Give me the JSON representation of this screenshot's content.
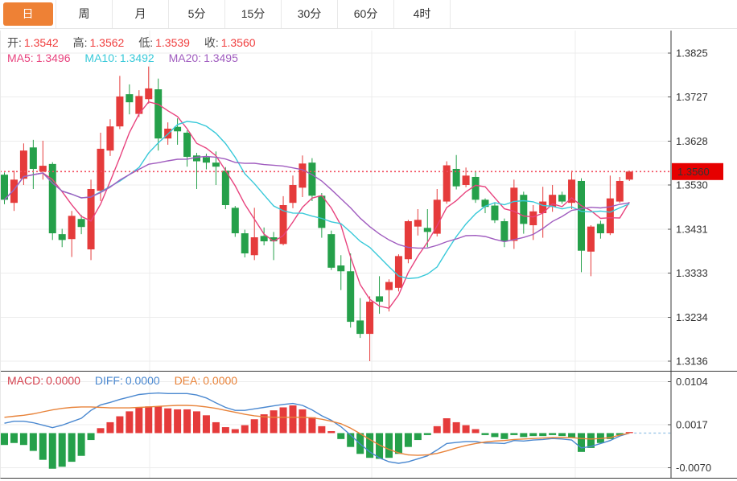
{
  "toolbar": {
    "tabs": [
      {
        "label": "日",
        "active": true
      },
      {
        "label": "周",
        "active": false
      },
      {
        "label": "月",
        "active": false
      },
      {
        "label": "5分",
        "active": false
      },
      {
        "label": "15分",
        "active": false
      },
      {
        "label": "30分",
        "active": false
      },
      {
        "label": "60分",
        "active": false
      },
      {
        "label": "4时",
        "active": false
      }
    ]
  },
  "ohlc_row": {
    "open_label": "开:",
    "open_value": "1.3542",
    "high_label": "高:",
    "high_value": "1.3562",
    "low_label": "低:",
    "low_value": "1.3539",
    "close_label": "收:",
    "close_value": "1.3560"
  },
  "ma_row": {
    "ma5_label": "MA5:",
    "ma5_value": "1.3496",
    "ma10_label": "MA10:",
    "ma10_value": "1.3492",
    "ma20_label": "MA20:",
    "ma20_value": "1.3495"
  },
  "macd_row": {
    "macd_label": "MACD:",
    "macd_value": "0.0000",
    "diff_label": "DIFF:",
    "diff_value": "0.0000",
    "dea_label": "DEA:",
    "dea_value": "0.0000"
  },
  "colors": {
    "up": "#e53b3b",
    "down": "#25a04a",
    "ma5": "#e8437e",
    "ma10": "#38c9d9",
    "ma20": "#a05cbf",
    "diff_line": "#4a88d0",
    "dea_line": "#e8833a",
    "macd_text": "#d4414e",
    "tab_accent": "#ee8135",
    "price_badge": "#e60000",
    "price_line": "#f24d5e",
    "grid": "#ececec",
    "axis": "#3a3a3a",
    "value_red": "#f03e3e"
  },
  "chart_data": {
    "type": "candlestick_with_macd",
    "timeframe": "日",
    "last_price": 1.356,
    "legend": [
      "MA5",
      "MA10",
      "MA20",
      "MACD",
      "DIFF",
      "DEA"
    ],
    "main": {
      "ylim": [
        1.3136,
        1.3825
      ],
      "y_ticks": [
        1.3825,
        1.3727,
        1.3628,
        1.353,
        1.3431,
        1.3333,
        1.3234,
        1.3136
      ],
      "price_line": 1.356,
      "ma_periods": [
        5,
        10,
        20
      ],
      "v_gridline_x": [
        186,
        462,
        715
      ],
      "candles_format": [
        "open",
        "high",
        "low",
        "close"
      ],
      "candles": [
        [
          1.3553,
          1.3558,
          1.3487,
          1.3497
        ],
        [
          1.349,
          1.3562,
          1.3472,
          1.3542
        ],
        [
          1.3544,
          1.3623,
          1.353,
          1.3607
        ],
        [
          1.3614,
          1.3631,
          1.3521,
          1.3566
        ],
        [
          1.356,
          1.3629,
          1.3542,
          1.3573
        ],
        [
          1.3577,
          1.3581,
          1.3407,
          1.3422
        ],
        [
          1.342,
          1.3432,
          1.3391,
          1.3407
        ],
        [
          1.3409,
          1.3472,
          1.3369,
          1.3461
        ],
        [
          1.3454,
          1.3463,
          1.342,
          1.3436
        ],
        [
          1.3386,
          1.3542,
          1.3362,
          1.3521
        ],
        [
          1.3517,
          1.3647,
          1.3494,
          1.3611
        ],
        [
          1.3607,
          1.3677,
          1.3595,
          1.3661
        ],
        [
          1.3661,
          1.3774,
          1.3655,
          1.3728
        ],
        [
          1.3733,
          1.3755,
          1.3688,
          1.3715
        ],
        [
          1.3689,
          1.3742,
          1.3682,
          1.3729
        ],
        [
          1.3722,
          1.3795,
          1.3712,
          1.3746
        ],
        [
          1.3744,
          1.3768,
          1.3607,
          1.3634
        ],
        [
          1.3634,
          1.367,
          1.362,
          1.3656
        ],
        [
          1.366,
          1.3679,
          1.362,
          1.365
        ],
        [
          1.3647,
          1.3652,
          1.3571,
          1.3593
        ],
        [
          1.3596,
          1.3602,
          1.3521,
          1.3583
        ],
        [
          1.3592,
          1.36,
          1.3565,
          1.358
        ],
        [
          1.358,
          1.3605,
          1.353,
          1.3571
        ],
        [
          1.3562,
          1.357,
          1.3476,
          1.3485
        ],
        [
          1.3479,
          1.3483,
          1.3414,
          1.3422
        ],
        [
          1.3422,
          1.343,
          1.3368,
          1.3377
        ],
        [
          1.3373,
          1.3479,
          1.3362,
          1.3413
        ],
        [
          1.3416,
          1.3435,
          1.3395,
          1.3404
        ],
        [
          1.3413,
          1.3425,
          1.3362,
          1.3404
        ],
        [
          1.3398,
          1.3505,
          1.3395,
          1.3485
        ],
        [
          1.349,
          1.3551,
          1.3478,
          1.353
        ],
        [
          1.3524,
          1.3596,
          1.3503,
          1.3578
        ],
        [
          1.358,
          1.359,
          1.3494,
          1.3506
        ],
        [
          1.3506,
          1.3512,
          1.3412,
          1.3434
        ],
        [
          1.342,
          1.3428,
          1.334,
          1.3345
        ],
        [
          1.335,
          1.3373,
          1.3295,
          1.3337
        ],
        [
          1.3337,
          1.3377,
          1.3211,
          1.3224
        ],
        [
          1.3227,
          1.3277,
          1.3188,
          1.3197
        ],
        [
          1.3197,
          1.3281,
          1.3136,
          1.3269
        ],
        [
          1.3281,
          1.3326,
          1.3242,
          1.3269
        ],
        [
          1.3295,
          1.3319,
          1.3247,
          1.3313
        ],
        [
          1.33,
          1.3375,
          1.3292,
          1.3371
        ],
        [
          1.3364,
          1.3452,
          1.3355,
          1.3449
        ],
        [
          1.3437,
          1.3476,
          1.3417,
          1.3452
        ],
        [
          1.3434,
          1.3476,
          1.3391,
          1.3425
        ],
        [
          1.3421,
          1.3521,
          1.3415,
          1.3497
        ],
        [
          1.3493,
          1.3583,
          1.3488,
          1.3574
        ],
        [
          1.3566,
          1.3597,
          1.352,
          1.3527
        ],
        [
          1.353,
          1.3569,
          1.3525,
          1.3551
        ],
        [
          1.3548,
          1.3562,
          1.349,
          1.3497
        ],
        [
          1.3497,
          1.35,
          1.3467,
          1.3481
        ],
        [
          1.3484,
          1.349,
          1.3445,
          1.3451
        ],
        [
          1.3449,
          1.3455,
          1.3391,
          1.3404
        ],
        [
          1.3405,
          1.3542,
          1.3387,
          1.3524
        ],
        [
          1.3508,
          1.3515,
          1.3421,
          1.3443
        ],
        [
          1.344,
          1.3485,
          1.3407,
          1.3471
        ],
        [
          1.3467,
          1.3526,
          1.3412,
          1.3493
        ],
        [
          1.3481,
          1.353,
          1.347,
          1.3508
        ],
        [
          1.3508,
          1.3515,
          1.3488,
          1.3493
        ],
        [
          1.349,
          1.3562,
          1.3476,
          1.3542
        ],
        [
          1.3539,
          1.3545,
          1.3335,
          1.3383
        ],
        [
          1.3381,
          1.344,
          1.3326,
          1.3437
        ],
        [
          1.3443,
          1.345,
          1.341,
          1.3422
        ],
        [
          1.3422,
          1.3551,
          1.3418,
          1.35
        ],
        [
          1.3493,
          1.3548,
          1.349,
          1.3539
        ],
        [
          1.3542,
          1.3562,
          1.3539,
          1.356
        ]
      ]
    },
    "macd": {
      "y_ticks": [
        0.0104,
        0.0017,
        -0.007
      ],
      "hist": [
        -0.0024,
        -0.002,
        -0.0024,
        -0.0036,
        -0.0054,
        -0.0072,
        -0.0068,
        -0.0058,
        -0.0046,
        -0.0014,
        0.001,
        0.0022,
        0.0034,
        0.0044,
        0.0052,
        0.0054,
        0.0054,
        0.005,
        0.0048,
        0.0048,
        0.0044,
        0.0036,
        0.0022,
        0.0012,
        0.0008,
        0.0016,
        0.0028,
        0.0038,
        0.0046,
        0.0052,
        0.0056,
        0.0048,
        0.0032,
        0.0014,
        0.0004,
        -0.0012,
        -0.0028,
        -0.0042,
        -0.005,
        -0.0052,
        -0.005,
        -0.0042,
        -0.0028,
        -0.0014,
        -0.0004,
        0.0014,
        0.003,
        0.0022,
        0.0016,
        0.0008,
        -0.0004,
        -0.0008,
        -0.0012,
        -0.0004,
        -0.0008,
        -0.0006,
        -0.0006,
        -0.0004,
        -0.0006,
        -0.001,
        -0.0038,
        -0.003,
        -0.002,
        -0.0012,
        -0.0004,
        0.0
      ],
      "diff": [
        0.002,
        0.0024,
        0.0024,
        0.0021,
        0.0016,
        0.0011,
        0.0016,
        0.0023,
        0.003,
        0.0046,
        0.0057,
        0.0062,
        0.0068,
        0.0073,
        0.0078,
        0.008,
        0.0081,
        0.008,
        0.008,
        0.008,
        0.0077,
        0.0071,
        0.0061,
        0.0052,
        0.0046,
        0.0046,
        0.0049,
        0.0052,
        0.0055,
        0.0058,
        0.006,
        0.0056,
        0.0047,
        0.0035,
        0.0026,
        0.0013,
        -0.0004,
        -0.0022,
        -0.0038,
        -0.005,
        -0.0058,
        -0.0061,
        -0.0058,
        -0.0052,
        -0.0046,
        -0.0034,
        -0.0021,
        -0.0019,
        -0.0017,
        -0.0017,
        -0.002,
        -0.002,
        -0.0021,
        -0.0015,
        -0.0016,
        -0.0014,
        -0.0013,
        -0.0011,
        -0.0012,
        -0.0014,
        -0.003,
        -0.0027,
        -0.0021,
        -0.0015,
        -0.0006,
        0.0
      ],
      "dea": [
        0.0032,
        0.0034,
        0.0036,
        0.0039,
        0.0043,
        0.0047,
        0.005,
        0.0052,
        0.0053,
        0.0053,
        0.0052,
        0.0051,
        0.0051,
        0.0051,
        0.0052,
        0.0053,
        0.0054,
        0.0055,
        0.0056,
        0.0056,
        0.0055,
        0.0053,
        0.005,
        0.0046,
        0.0042,
        0.0038,
        0.0035,
        0.0033,
        0.0032,
        0.0032,
        0.0032,
        0.0032,
        0.0031,
        0.0028,
        0.0024,
        0.0019,
        0.001,
        -0.0001,
        -0.0013,
        -0.0024,
        -0.0033,
        -0.004,
        -0.0044,
        -0.0045,
        -0.0044,
        -0.0041,
        -0.0036,
        -0.003,
        -0.0025,
        -0.0021,
        -0.0018,
        -0.0016,
        -0.0015,
        -0.0013,
        -0.0012,
        -0.0011,
        -0.001,
        -0.0009,
        -0.0009,
        -0.0009,
        -0.0011,
        -0.0012,
        -0.0011,
        -0.0009,
        -0.0004,
        0.0
      ]
    }
  }
}
